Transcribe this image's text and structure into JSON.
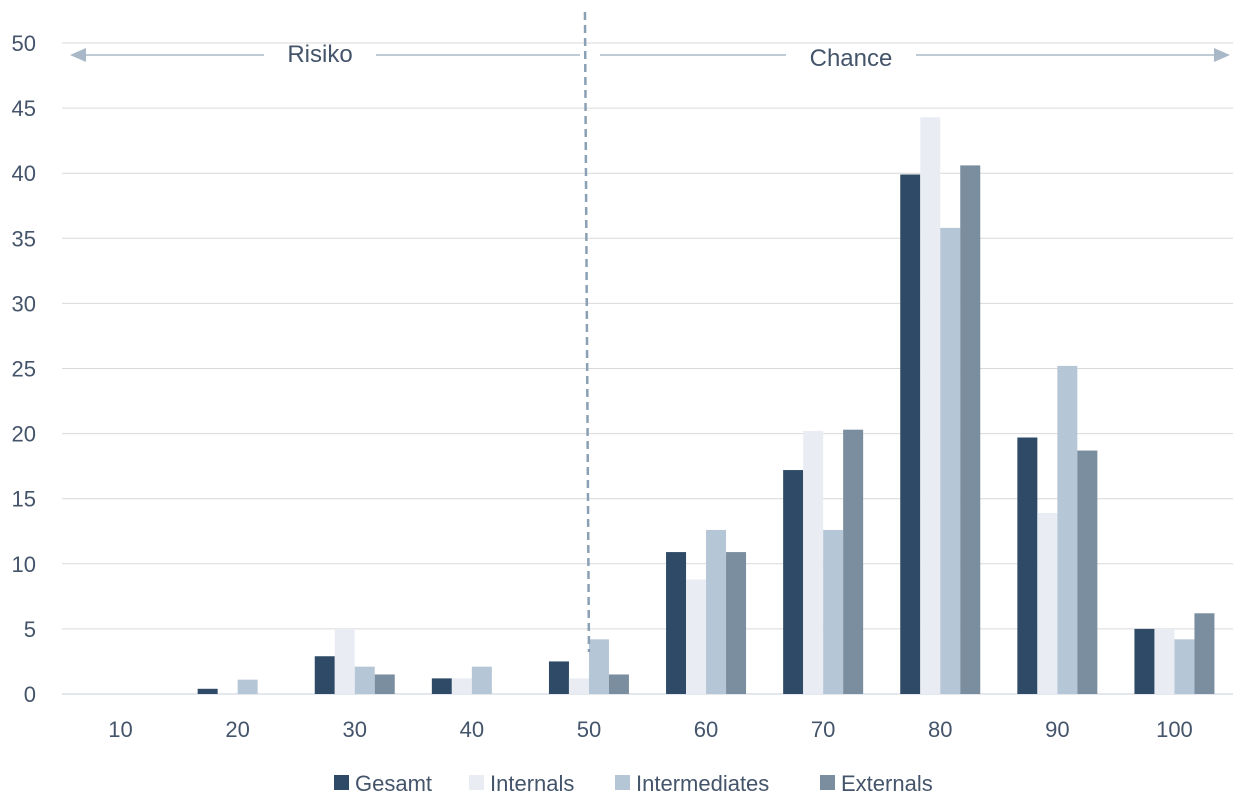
{
  "chart_data": {
    "type": "bar",
    "categories": [
      "10",
      "20",
      "30",
      "40",
      "50",
      "60",
      "70",
      "80",
      "90",
      "100"
    ],
    "series": [
      {
        "name": "Gesamt",
        "color": "#2e4a66",
        "values": [
          0,
          0.4,
          2.9,
          1.2,
          2.5,
          10.9,
          17.2,
          39.9,
          19.7,
          5.0
        ]
      },
      {
        "name": "Internals",
        "color": "#e9edf3",
        "values": [
          0,
          0,
          5.0,
          1.2,
          1.2,
          8.8,
          20.2,
          44.3,
          13.9,
          5.0
        ]
      },
      {
        "name": "Intermediates",
        "color": "#b5c6d6",
        "values": [
          0,
          1.1,
          2.1,
          2.1,
          4.2,
          12.6,
          12.6,
          35.8,
          25.2,
          4.2
        ]
      },
      {
        "name": "Externals",
        "color": "#7a8ea0",
        "values": [
          0,
          0,
          1.5,
          0,
          1.5,
          10.9,
          20.3,
          40.6,
          18.7,
          6.2
        ]
      }
    ],
    "yticks": [
      "0",
      "5",
      "10",
      "15",
      "20",
      "25",
      "30",
      "35",
      "40",
      "45",
      "50"
    ],
    "ylim": [
      0,
      50
    ],
    "grid": true,
    "legend": "bottom",
    "annotations": {
      "risk_label": "Risiko",
      "chance_label": "Chance",
      "divider_at": "50"
    }
  }
}
